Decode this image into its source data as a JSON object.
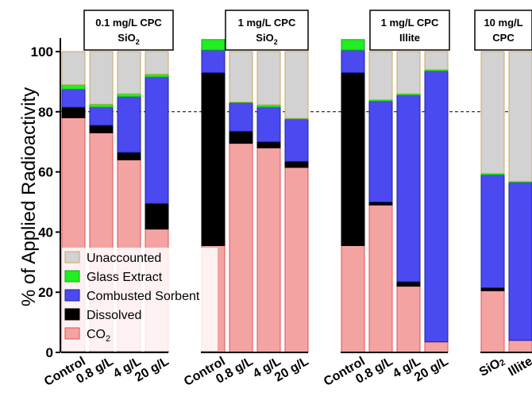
{
  "chart_data": {
    "type": "bar",
    "stacked": true,
    "ylabel": "% of Applied Radioactivity",
    "xlabel": "",
    "ylim": [
      0,
      105
    ],
    "yticks": [
      "0",
      "20",
      "40",
      "60",
      "80",
      "100"
    ],
    "reference_line": 80,
    "legend_placement": "bottom-left",
    "groups": [
      {
        "title_line1": "0.1 mg/L CPC",
        "title_line2_main": "SiO",
        "title_line2_sub": "2"
      },
      {
        "title_line1": "1 mg/L CPC",
        "title_line2_main": "SiO",
        "title_line2_sub": "2"
      },
      {
        "title_line1": "1 mg/L CPC",
        "title_line2_main": "Illite",
        "title_line2_sub": ""
      },
      {
        "title_line1": "10 mg/L",
        "title_line2_main": "CPC",
        "title_line2_sub": ""
      }
    ],
    "categories": [
      "Control",
      "0.8 g/L",
      "4 g/L",
      "20 g/L",
      "Control",
      "0.8 g/L",
      "4 g/L",
      "20 g/L",
      "Control",
      "0.8 g/L",
      "4 g/L",
      "20 g/L",
      "SiO2",
      "Illite"
    ],
    "series": [
      {
        "name": "CO",
        "name_sub": "2",
        "color": "#f4a3a3",
        "edge": "#e05050",
        "values": [
          78,
          73,
          64,
          41,
          35.5,
          69.5,
          68,
          61.5,
          35.5,
          49,
          22,
          3.5,
          20.5,
          4
        ]
      },
      {
        "name": "Dissolved",
        "color": "#000000",
        "edge": "#000000",
        "values": [
          3.5,
          2.5,
          2.5,
          8.5,
          57.5,
          4,
          2,
          2,
          57.5,
          1,
          1.5,
          0,
          1,
          0
        ]
      },
      {
        "name": "Combusted Sorbent",
        "color": "#4a4af0",
        "edge": "#1e1ea0",
        "values": [
          6,
          6,
          18.5,
          42,
          7.5,
          9.5,
          11.5,
          14,
          7.5,
          33.5,
          62,
          90,
          37.5,
          52.5
        ]
      },
      {
        "name": "Glass Extract",
        "color": "#22ee22",
        "edge": "#11aa11",
        "values": [
          1.5,
          1,
          1,
          1,
          3.5,
          0.2,
          0.8,
          0.3,
          3.5,
          0.5,
          0.5,
          0.5,
          0.5,
          0.3
        ]
      },
      {
        "name": "Unaccounted",
        "color": "#d2d2d2",
        "edge": "#c8a860",
        "values": [
          11,
          17.5,
          14,
          7.5,
          0,
          16.8,
          17.7,
          22.2,
          0,
          16,
          14,
          6,
          40.5,
          43.2
        ]
      }
    ]
  }
}
